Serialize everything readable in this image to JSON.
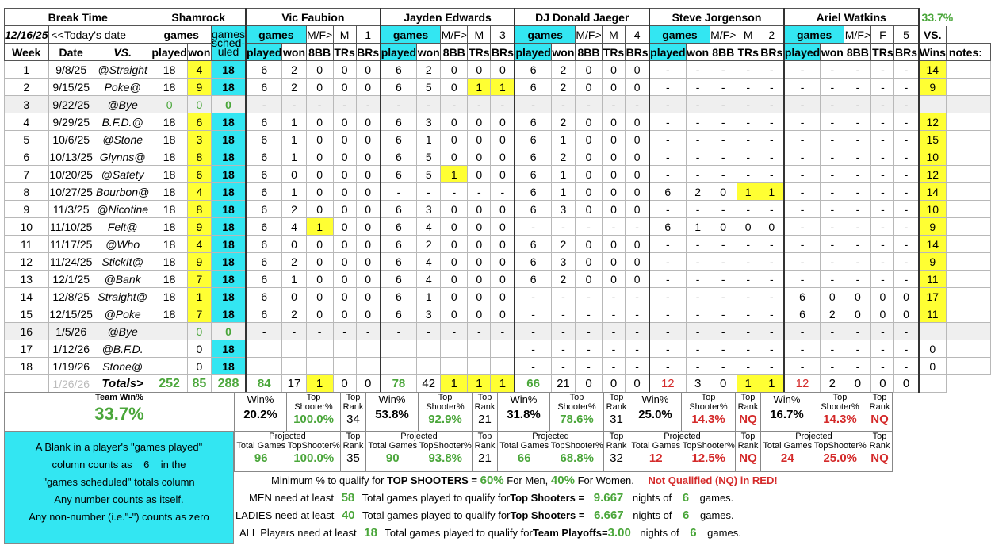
{
  "header": {
    "league": "Break Time",
    "team": "Shamrock",
    "date": "12/16/25",
    "today_label": "<<Today's date",
    "games_label": "games",
    "played_label": "played",
    "won_label": "won",
    "scheduled_label": "games sched-uled",
    "week_label": "Week",
    "date_col_label": "Date",
    "vs_label": "VS.",
    "vs_label2": "VS.",
    "wins_label": "Wins",
    "notes_label": "notes:",
    "team_pct": "33.7%",
    "sub_mf": "M/F>",
    "sub_8bb": "8BB",
    "sub_trs": "TRs",
    "sub_brs": "BRs"
  },
  "players": [
    {
      "name": "Vic Faubion",
      "gender": "M",
      "num": "1"
    },
    {
      "name": "Jayden Edwards",
      "gender": "M",
      "num": "3"
    },
    {
      "name": "DJ Donald Jaeger",
      "gender": "M",
      "num": "4"
    },
    {
      "name": "Steve Jorgenson",
      "gender": "M",
      "num": "2"
    },
    {
      "name": "Ariel Watkins",
      "gender": "F",
      "num": "5"
    }
  ],
  "weeks": [
    {
      "wk": "1",
      "date": "9/8/25",
      "vs": "@Straight",
      "played": "18",
      "won": "4",
      "sched": "18",
      "p": [
        [
          "",
          "",
          "",
          "",
          ""
        ],
        [
          "6",
          "2",
          "0",
          "0",
          "0"
        ],
        [
          "6",
          "2",
          "0",
          "0",
          "0"
        ],
        [
          "-",
          "-",
          "-",
          "-",
          "-"
        ],
        [
          "-",
          "-",
          "-",
          "-",
          "-"
        ]
      ],
      "wins": "14",
      "vic": [
        "6",
        "2",
        "0",
        "0",
        "0"
      ]
    },
    {
      "wk": "2",
      "date": "9/15/25",
      "vs": "Poke@",
      "played": "18",
      "won": "9",
      "sched": "18",
      "p": [
        [
          "6",
          "2",
          "0",
          "0",
          "0"
        ],
        [
          "6",
          "5",
          "0",
          "1",
          "1"
        ],
        [
          "6",
          "2",
          "0",
          "0",
          "0"
        ],
        [
          "-",
          "-",
          "-",
          "-",
          "-"
        ],
        [
          "-",
          "-",
          "-",
          "-",
          "-"
        ]
      ],
      "wins": "9"
    },
    {
      "wk": "3",
      "date": "9/22/25",
      "vs": "@Bye",
      "played": "0",
      "won": "0",
      "sched": "0",
      "bye": true,
      "p": [
        [
          "-",
          "-",
          "-",
          "-",
          "-"
        ],
        [
          "-",
          "-",
          "-",
          "-",
          "-"
        ],
        [
          "-",
          "-",
          "-",
          "-",
          "-"
        ],
        [
          "-",
          "-",
          "-",
          "-",
          "-"
        ],
        [
          "-",
          "-",
          "-",
          "-",
          "-"
        ]
      ],
      "wins": ""
    },
    {
      "wk": "4",
      "date": "9/29/25",
      "vs": "B.F.D.@",
      "played": "18",
      "won": "6",
      "sched": "18",
      "p": [
        [
          "6",
          "1",
          "0",
          "0",
          "0"
        ],
        [
          "6",
          "3",
          "0",
          "0",
          "0"
        ],
        [
          "6",
          "2",
          "0",
          "0",
          "0"
        ],
        [
          "-",
          "-",
          "-",
          "-",
          "-"
        ],
        [
          "-",
          "-",
          "-",
          "-",
          "-"
        ]
      ],
      "wins": "12"
    },
    {
      "wk": "5",
      "date": "10/6/25",
      "vs": "@Stone",
      "played": "18",
      "won": "3",
      "sched": "18",
      "p": [
        [
          "6",
          "1",
          "0",
          "0",
          "0"
        ],
        [
          "6",
          "1",
          "0",
          "0",
          "0"
        ],
        [
          "6",
          "1",
          "0",
          "0",
          "0"
        ],
        [
          "-",
          "-",
          "-",
          "-",
          "-"
        ],
        [
          "-",
          "-",
          "-",
          "-",
          "-"
        ]
      ],
      "wins": "15"
    },
    {
      "wk": "6",
      "date": "10/13/25",
      "vs": "Glynns@",
      "played": "18",
      "won": "8",
      "sched": "18",
      "p": [
        [
          "6",
          "1",
          "0",
          "0",
          "0"
        ],
        [
          "6",
          "5",
          "0",
          "0",
          "0"
        ],
        [
          "6",
          "2",
          "0",
          "0",
          "0"
        ],
        [
          "-",
          "-",
          "-",
          "-",
          "-"
        ],
        [
          "-",
          "-",
          "-",
          "-",
          "-"
        ]
      ],
      "wins": "10"
    },
    {
      "wk": "7",
      "date": "10/20/25",
      "vs": "@Safety",
      "played": "18",
      "won": "6",
      "sched": "18",
      "p": [
        [
          "6",
          "0",
          "0",
          "0",
          "0"
        ],
        [
          "6",
          "5",
          "1",
          "0",
          "0"
        ],
        [
          "6",
          "1",
          "0",
          "0",
          "0"
        ],
        [
          "-",
          "-",
          "-",
          "-",
          "-"
        ],
        [
          "-",
          "-",
          "-",
          "-",
          "-"
        ]
      ],
      "wins": "12"
    },
    {
      "wk": "8",
      "date": "10/27/25",
      "vs": "Bourbon@",
      "played": "18",
      "won": "4",
      "sched": "18",
      "p": [
        [
          "6",
          "1",
          "0",
          "0",
          "0"
        ],
        [
          "-",
          "-",
          "-",
          "-",
          "-"
        ],
        [
          "6",
          "1",
          "0",
          "0",
          "0"
        ],
        [
          "6",
          "2",
          "0",
          "1",
          "1"
        ],
        [
          "-",
          "-",
          "-",
          "-",
          "-"
        ]
      ],
      "wins": "14"
    },
    {
      "wk": "9",
      "date": "11/3/25",
      "vs": "@Nicotine",
      "played": "18",
      "won": "8",
      "sched": "18",
      "p": [
        [
          "6",
          "2",
          "0",
          "0",
          "0"
        ],
        [
          "6",
          "3",
          "0",
          "0",
          "0"
        ],
        [
          "6",
          "3",
          "0",
          "0",
          "0"
        ],
        [
          "-",
          "-",
          "-",
          "-",
          "-"
        ],
        [
          "-",
          "-",
          "-",
          "-",
          "-"
        ]
      ],
      "wins": "10"
    },
    {
      "wk": "10",
      "date": "11/10/25",
      "vs": "Felt@",
      "played": "18",
      "won": "9",
      "sched": "18",
      "p": [
        [
          "6",
          "4",
          "1",
          "0",
          "0"
        ],
        [
          "6",
          "4",
          "0",
          "0",
          "0"
        ],
        [
          "-",
          "-",
          "-",
          "-",
          "-"
        ],
        [
          "6",
          "1",
          "0",
          "0",
          "0"
        ],
        [
          "-",
          "-",
          "-",
          "-",
          "-"
        ]
      ],
      "wins": "9"
    },
    {
      "wk": "11",
      "date": "11/17/25",
      "vs": "@Who",
      "played": "18",
      "won": "4",
      "sched": "18",
      "p": [
        [
          "6",
          "0",
          "0",
          "0",
          "0"
        ],
        [
          "6",
          "2",
          "0",
          "0",
          "0"
        ],
        [
          "6",
          "2",
          "0",
          "0",
          "0"
        ],
        [
          "-",
          "-",
          "-",
          "-",
          "-"
        ],
        [
          "-",
          "-",
          "-",
          "-",
          "-"
        ]
      ],
      "wins": "14"
    },
    {
      "wk": "12",
      "date": "11/24/25",
      "vs": "StickIt@",
      "played": "18",
      "won": "9",
      "sched": "18",
      "p": [
        [
          "6",
          "2",
          "0",
          "0",
          "0"
        ],
        [
          "6",
          "4",
          "0",
          "0",
          "0"
        ],
        [
          "6",
          "3",
          "0",
          "0",
          "0"
        ],
        [
          "-",
          "-",
          "-",
          "-",
          "-"
        ],
        [
          "-",
          "-",
          "-",
          "-",
          "-"
        ]
      ],
      "wins": "9"
    },
    {
      "wk": "13",
      "date": "12/1/25",
      "vs": "@Bank",
      "played": "18",
      "won": "7",
      "sched": "18",
      "p": [
        [
          "6",
          "1",
          "0",
          "0",
          "0"
        ],
        [
          "6",
          "4",
          "0",
          "0",
          "0"
        ],
        [
          "6",
          "2",
          "0",
          "0",
          "0"
        ],
        [
          "-",
          "-",
          "-",
          "-",
          "-"
        ],
        [
          "-",
          "-",
          "-",
          "-",
          "-"
        ]
      ],
      "wins": "11"
    },
    {
      "wk": "14",
      "date": "12/8/25",
      "vs": "Straight@",
      "played": "18",
      "won": "1",
      "sched": "18",
      "p": [
        [
          "6",
          "0",
          "0",
          "0",
          "0"
        ],
        [
          "6",
          "1",
          "0",
          "0",
          "0"
        ],
        [
          "-",
          "-",
          "-",
          "-",
          "-"
        ],
        [
          "-",
          "-",
          "-",
          "-",
          "-"
        ],
        [
          "6",
          "0",
          "0",
          "0",
          "0"
        ]
      ],
      "wins": "17"
    },
    {
      "wk": "15",
      "date": "12/15/25",
      "vs": "@Poke",
      "played": "18",
      "won": "7",
      "sched": "18",
      "p": [
        [
          "6",
          "2",
          "0",
          "0",
          "0"
        ],
        [
          "6",
          "3",
          "0",
          "0",
          "0"
        ],
        [
          "-",
          "-",
          "-",
          "-",
          "-"
        ],
        [
          "-",
          "-",
          "-",
          "-",
          "-"
        ],
        [
          "6",
          "2",
          "0",
          "0",
          "0"
        ]
      ],
      "wins": "11"
    },
    {
      "wk": "16",
      "date": "1/5/26",
      "vs": "@Bye",
      "played": "",
      "won": "0",
      "sched": "0",
      "bye": true,
      "p": [
        [
          "-",
          "-",
          "-",
          "-",
          "-"
        ],
        [
          "-",
          "-",
          "-",
          "-",
          "-"
        ],
        [
          "-",
          "-",
          "-",
          "-",
          "-"
        ],
        [
          "-",
          "-",
          "-",
          "-",
          "-"
        ],
        [
          "-",
          "-",
          "-",
          "-",
          "-"
        ]
      ],
      "wins": ""
    },
    {
      "wk": "17",
      "date": "1/12/26",
      "vs": "@B.F.D.",
      "played": "",
      "won": "0",
      "sched": "18",
      "p": [
        [
          "",
          "",
          "",
          "",
          ""
        ],
        [
          "",
          "",
          "",
          "",
          ""
        ],
        [
          "-",
          "-",
          "-",
          "-",
          "-"
        ],
        [
          "-",
          "-",
          "-",
          "-",
          "-"
        ],
        [
          "-",
          "-",
          "-",
          "-",
          "-"
        ]
      ],
      "wins": "0"
    },
    {
      "wk": "18",
      "date": "1/19/26",
      "vs": "Stone@",
      "played": "",
      "won": "0",
      "sched": "18",
      "p": [
        [
          "",
          "",
          "",
          "",
          ""
        ],
        [
          "",
          "",
          "",
          "",
          ""
        ],
        [
          "-",
          "-",
          "-",
          "-",
          "-"
        ],
        [
          "-",
          "-",
          "-",
          "-",
          "-"
        ],
        [
          "-",
          "-",
          "-",
          "-",
          "-"
        ]
      ],
      "wins": "0"
    }
  ],
  "totals": {
    "faded_date": "1/26/26",
    "label": "Totals>",
    "played": "252",
    "won": "85",
    "sched": "288",
    "p": [
      [
        "84",
        "17",
        "1",
        "0",
        "0"
      ],
      [
        "78",
        "42",
        "1",
        "1",
        "1"
      ],
      [
        "66",
        "21",
        "0",
        "0",
        "0"
      ],
      [
        "12",
        "3",
        "0",
        "1",
        "1"
      ],
      [
        "12",
        "2",
        "0",
        "0",
        "0"
      ]
    ]
  },
  "stats": {
    "team_win_label": "Team Win%",
    "team_win": "33.7%",
    "win_label": "Win%",
    "top_shooter_label": "Top Shooter%",
    "top_rank_label": "Top Rank",
    "projected_label": "Projected",
    "total_games_label": "Total Games",
    "topshooter_label2": "TopShooter%",
    "players": [
      {
        "win": "20.2%",
        "ts": "100.0%",
        "rank": "34",
        "proj_games": "96",
        "proj_ts": "100.0%",
        "proj_rank": "35"
      },
      {
        "win": "53.8%",
        "ts": "92.9%",
        "rank": "21",
        "proj_games": "90",
        "proj_ts": "93.8%",
        "proj_rank": "21"
      },
      {
        "win": "31.8%",
        "ts": "78.6%",
        "rank": "31",
        "proj_games": "66",
        "proj_ts": "68.8%",
        "proj_rank": "32"
      },
      {
        "win": "25.0%",
        "ts": "14.3%",
        "rank": "NQ",
        "proj_games": "12",
        "proj_ts": "12.5%",
        "proj_rank": "NQ"
      },
      {
        "win": "16.7%",
        "ts": "14.3%",
        "rank": "NQ",
        "proj_games": "24",
        "proj_ts": "25.0%",
        "proj_rank": "NQ"
      }
    ]
  },
  "info_box": {
    "l1": "A Blank in a player's \"games played\"",
    "l2": "column counts as    6    in the",
    "l3": "\"games scheduled\" totals column",
    "l4": "Any number counts as itself.",
    "l5": "Any non-number (i.e.\"-\") counts as zero"
  },
  "rules": {
    "min_pct_text": "Minimum % to qualify for",
    "top_shooters": "TOP SHOOTERS =",
    "men_pct": "60%",
    "for_men": "For Men,",
    "women_pct": "40%",
    "for_women": "For Women.",
    "nq_text": "Not Qualified (NQ) in RED!",
    "men_need": "MEN need at least",
    "men_n": "58",
    "ladies_need": "LADIES need at least",
    "ladies_n": "40",
    "all_need": "ALL Players need at least",
    "all_n": "18",
    "total_games_text": "Total games played to qualify for",
    "top_shooters_eq": "Top Shooters =",
    "team_playoffs_eq": "Team Playoffs=",
    "men_nights": "9.667",
    "ladies_nights": "6.667",
    "all_nights": "3.00",
    "nights_of": "nights of",
    "six": "6",
    "games_dot": "games."
  },
  "colors": {
    "cyan": "#33e6f2",
    "yellow": "#ffff33",
    "green": "#4aa63a",
    "red": "#d42a2a"
  }
}
